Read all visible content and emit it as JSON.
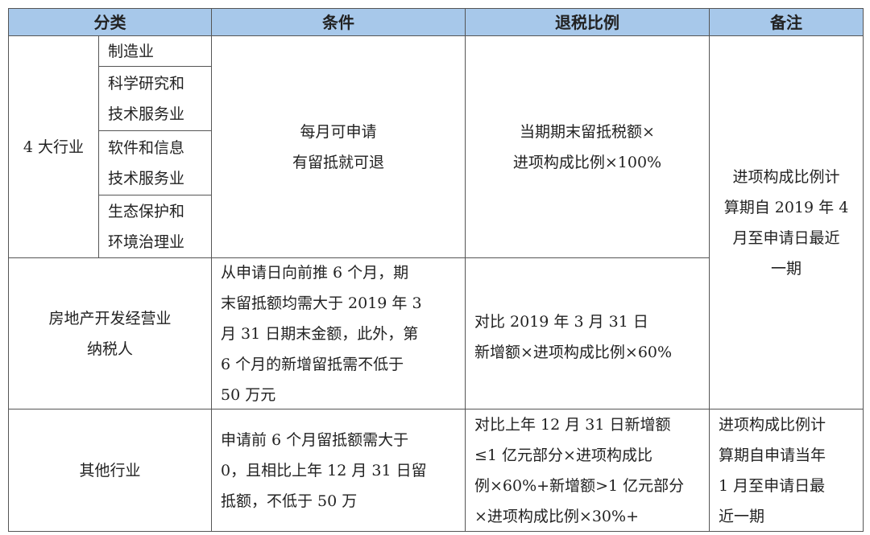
{
  "header": {
    "category": "分类",
    "condition": "条件",
    "ratio": "退税比例",
    "remark": "备注"
  },
  "rows": [
    {
      "category": "4 大行业",
      "subs": [
        "制造业",
        "科学研究和\n技术服务业",
        "软件和信息\n技术服务业",
        "生态保护和\n环境治理业"
      ],
      "condition": "每月可申请\n有留抵就可退",
      "ratio": "当期期末留抵税额×\n进项构成比例×100%"
    },
    {
      "category": "房地产开发经营业\n纳税人",
      "condition": "从申请日向前推 6 个月，期\n末留抵额均需大于 2019 年 3\n月 31 日期末金额，此外，第\n 6 个月的新增留抵需不低于\n50 万元",
      "ratio": "对比 2019 年 3 月 31 日\n新增额×进项构成比例×60%"
    },
    {
      "category": "其他行业",
      "condition": "申请前 6 个月留抵额需大于\n0，且相比上年 12 月 31 日留\n抵额，不低于 50 万",
      "ratio": "对比上年 12 月 31 日新增额\n≤1 亿元部分×进项构成比\n例×60%+新增额>1 亿元部分\n×进项构成比例×30%+",
      "remark": "进项构成比例计\n算期自申请当年\n1 月至申请日最\n近一期"
    }
  ],
  "remark_merged": "进项构成比例计\n算期自 2019 年 4\n月至申请日最近\n一期",
  "colors": {
    "header_bg": "#a7c8ea"
  }
}
